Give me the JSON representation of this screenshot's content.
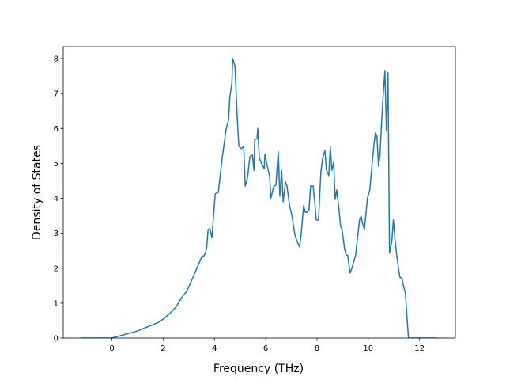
{
  "chart_data": {
    "type": "line",
    "xlabel": "Frequency (THz)",
    "ylabel": "Density of States",
    "color": "#1f77b4",
    "x": [
      -1.2,
      0,
      0.98,
      1.82,
      2.0,
      2.22,
      2.49,
      2.74,
      2.92,
      3.14,
      3.35,
      3.51,
      3.6,
      3.69,
      3.75,
      3.82,
      3.9,
      4.03,
      4.15,
      4.3,
      4.46,
      4.55,
      4.6,
      4.68,
      4.71,
      4.8,
      4.89,
      4.95,
      5.05,
      5.14,
      5.2,
      5.29,
      5.38,
      5.48,
      5.54,
      5.57,
      5.66,
      5.69,
      5.75,
      5.85,
      5.94,
      5.97,
      6.06,
      6.15,
      6.2,
      6.31,
      6.4,
      6.46,
      6.49,
      6.55,
      6.62,
      6.68,
      6.77,
      6.83,
      6.92,
      7.02,
      7.14,
      7.26,
      7.32,
      7.38,
      7.48,
      7.54,
      7.6,
      7.69,
      7.75,
      7.85,
      7.91,
      7.97,
      8.06,
      8.15,
      8.22,
      8.31,
      8.37,
      8.46,
      8.52,
      8.58,
      8.65,
      8.71,
      8.77,
      8.86,
      8.92,
      8.98,
      9.08,
      9.14,
      9.2,
      9.29,
      9.38,
      9.51,
      9.6,
      9.66,
      9.72,
      9.78,
      9.85,
      9.91,
      9.97,
      10.06,
      10.12,
      10.22,
      10.28,
      10.34,
      10.4,
      10.46,
      10.52,
      10.58,
      10.65,
      10.71,
      10.77,
      10.83,
      10.92,
      10.98,
      11.05,
      11.14,
      11.23,
      11.32,
      11.38,
      11.45,
      11.51,
      11.57,
      12.68
    ],
    "values": [
      0,
      0,
      0.2,
      0.45,
      0.54,
      0.68,
      0.88,
      1.18,
      1.34,
      1.7,
      2.06,
      2.34,
      2.36,
      2.54,
      3.1,
      3.13,
      2.88,
      4.13,
      4.17,
      5.15,
      6.0,
      6.24,
      6.9,
      7.3,
      8.0,
      7.8,
      6.28,
      5.49,
      5.42,
      5.49,
      4.35,
      4.58,
      5.19,
      5.24,
      4.8,
      5.67,
      5.71,
      6.0,
      5.15,
      4.97,
      4.85,
      5.26,
      4.92,
      4.65,
      4.0,
      4.33,
      4.38,
      5.03,
      5.33,
      4.06,
      4.8,
      3.9,
      4.47,
      4.35,
      3.83,
      3.51,
      2.95,
      2.7,
      2.61,
      2.97,
      3.79,
      3.6,
      3.6,
      3.67,
      4.35,
      4.35,
      3.9,
      3.38,
      3.38,
      4.74,
      5.15,
      5.37,
      4.8,
      4.65,
      5.47,
      4.8,
      5.03,
      3.97,
      4.24,
      3.67,
      3.2,
      3.1,
      2.54,
      2.38,
      2.36,
      1.86,
      2.04,
      2.38,
      2.99,
      3.38,
      3.49,
      3.27,
      3.11,
      3.56,
      4.01,
      4.24,
      4.74,
      5.53,
      5.87,
      5.78,
      4.92,
      5.26,
      6.17,
      6.92,
      7.64,
      5.94,
      7.6,
      2.43,
      2.77,
      3.38,
      2.77,
      2.2,
      1.75,
      1.7,
      1.47,
      1.29,
      0.61,
      0,
      0
    ],
    "xlim": [
      -1.9,
      13.4
    ],
    "ylim": [
      0,
      8.34
    ],
    "xticks": [
      0,
      2,
      4,
      6,
      8,
      10,
      12
    ],
    "yticks": [
      0,
      1,
      2,
      3,
      4,
      5,
      6,
      7,
      8
    ]
  }
}
